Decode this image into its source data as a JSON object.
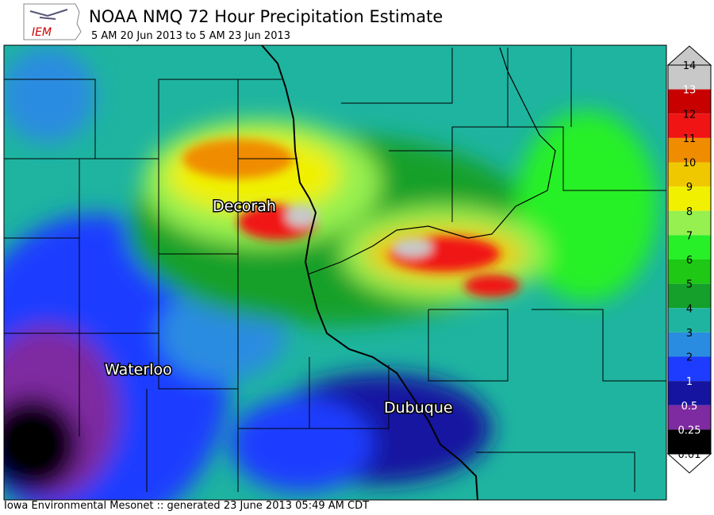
{
  "header": {
    "title": "NOAA NMQ 72 Hour Precipitation Estimate",
    "subtitle": "5 AM 20 Jun 2013 to 5 AM 23 Jun 2013"
  },
  "logo": {
    "text": "IEM"
  },
  "map": {
    "labels": [
      "Decorah",
      "Waterloo",
      "Dubuque"
    ]
  },
  "legend": {
    "top_color": "#c8c8c8",
    "items": [
      {
        "label": "14",
        "color": "#c8c8c8"
      },
      {
        "label": "13",
        "color": "#c80000"
      },
      {
        "label": "12",
        "color": "#f01414"
      },
      {
        "label": "11",
        "color": "#f08c00"
      },
      {
        "label": "10",
        "color": "#f0c800"
      },
      {
        "label": "9",
        "color": "#f0f000"
      },
      {
        "label": "8",
        "color": "#96f050"
      },
      {
        "label": "7",
        "color": "#28f028"
      },
      {
        "label": "6",
        "color": "#1ec814"
      },
      {
        "label": "5",
        "color": "#14a02a"
      },
      {
        "label": "4",
        "color": "#1eb4a0"
      },
      {
        "label": "3",
        "color": "#2a8ce0"
      },
      {
        "label": "2",
        "color": "#1e3cff"
      },
      {
        "label": "1",
        "color": "#1414a0"
      },
      {
        "label": "0.5",
        "color": "#7e2aa0"
      },
      {
        "label": "0.25",
        "color": "#000000"
      },
      {
        "label": "0.01",
        "color": "#ffffff"
      }
    ]
  },
  "footer": {
    "text": "Iowa Environmental Mesonet :: generated 23 June 2013 05:49 AM CDT"
  }
}
